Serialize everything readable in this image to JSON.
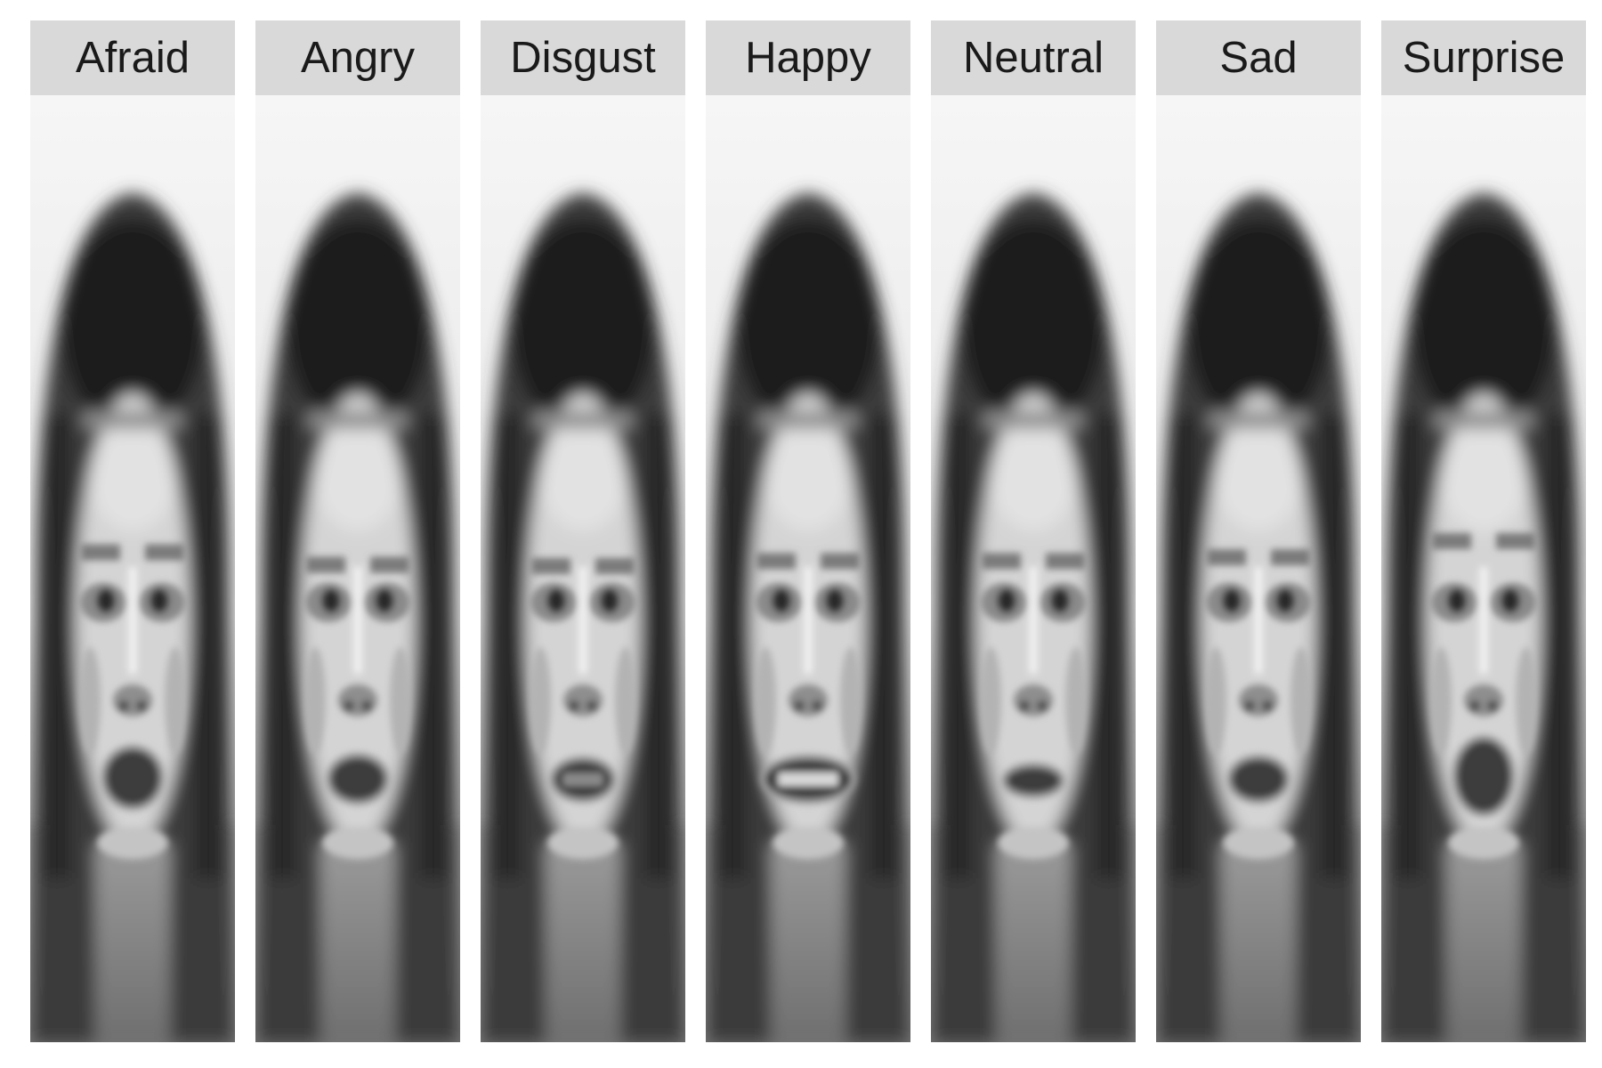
{
  "panels": [
    {
      "label": "Afraid",
      "mouth_open": 0.7,
      "brow_raise": 0.55,
      "teeth": 0.0,
      "smile": 0.0
    },
    {
      "label": "Angry",
      "mouth_open": 0.45,
      "brow_raise": 0.05,
      "teeth": 0.0,
      "smile": 0.0
    },
    {
      "label": "Disgust",
      "mouth_open": 0.35,
      "brow_raise": 0.0,
      "teeth": 0.5,
      "smile": 0.1
    },
    {
      "label": "Happy",
      "mouth_open": 0.4,
      "brow_raise": 0.2,
      "teeth": 1.0,
      "smile": 1.0
    },
    {
      "label": "Neutral",
      "mouth_open": 0.15,
      "brow_raise": 0.2,
      "teeth": 0.0,
      "smile": 0.0
    },
    {
      "label": "Sad",
      "mouth_open": 0.4,
      "brow_raise": 0.35,
      "teeth": 0.0,
      "smile": 0.0
    },
    {
      "label": "Surprise",
      "mouth_open": 1.0,
      "brow_raise": 1.0,
      "teeth": 0.0,
      "smile": 0.0
    }
  ],
  "colors": {
    "strip_bg": "#d9d9d9",
    "strip_text": "#1a1a1a",
    "background": "#ffffff"
  }
}
